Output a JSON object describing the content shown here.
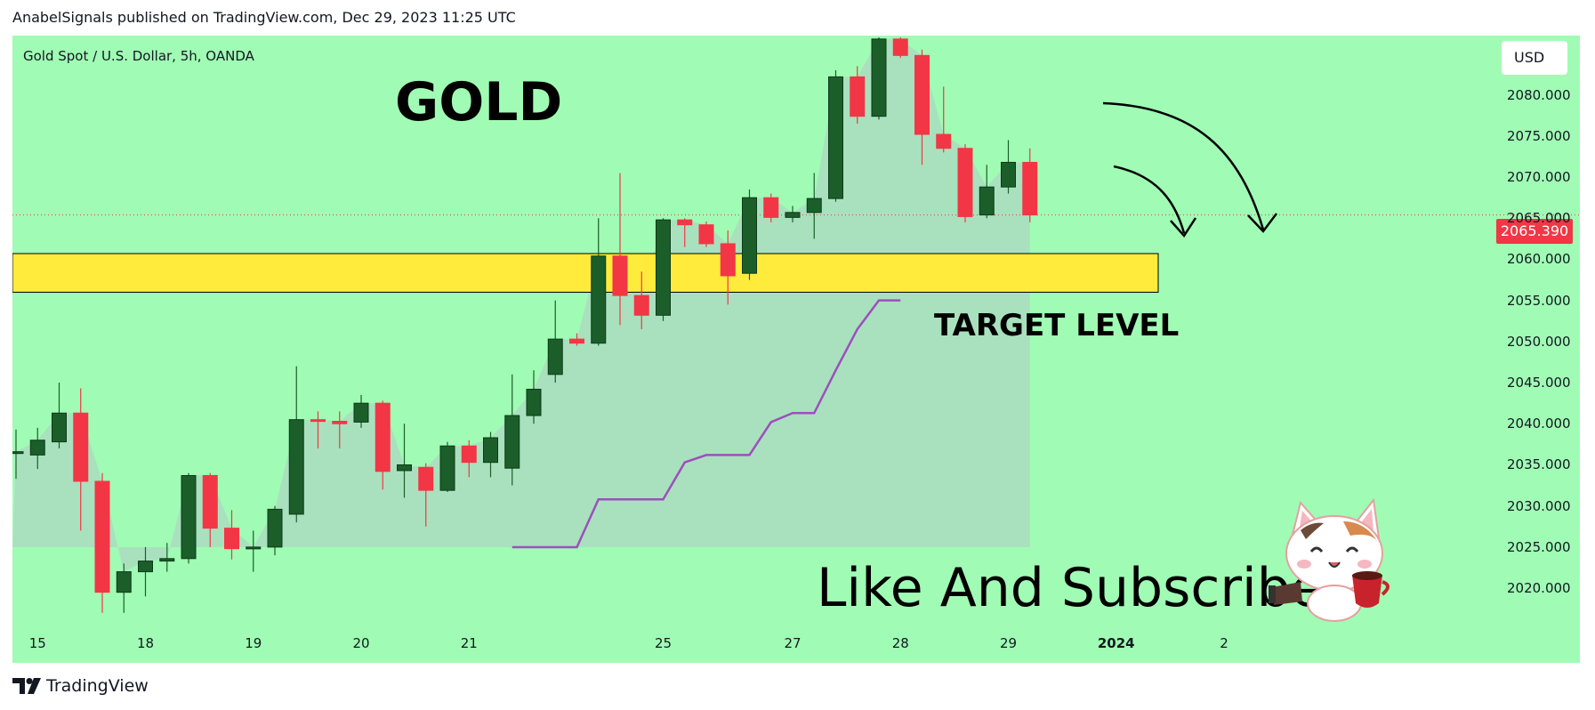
{
  "caption": "AnabelSignals published on TradingView.com, Dec 29, 2023 11:25 UTC",
  "symbol_title": "Gold Spot / U.S. Dollar, 5h, OANDA",
  "currency": "USD",
  "last_price": "2065.390",
  "annotations": {
    "gold": "GOLD",
    "target": "TARGET LEVEL",
    "subscribe": "Like And Subscribe"
  },
  "footer_logo": "TradingView",
  "colors": {
    "background": "#a0fcb4",
    "bull": "#1b5e2a",
    "bear": "#f23645",
    "zone": "#ffeb3b",
    "trail": "#9c4fbd",
    "area": "#aadcc0"
  },
  "chart_data": {
    "type": "candlestick",
    "ylim": [
      2016,
      2087
    ],
    "yticks": [
      "2080.000",
      "2075.000",
      "2070.000",
      "2065.000",
      "2060.000",
      "2055.000",
      "2050.000",
      "2045.000",
      "2040.000",
      "2035.000",
      "2030.000",
      "2025.000",
      "2020.000"
    ],
    "xticks": [
      {
        "label": "15",
        "index": 1
      },
      {
        "label": "18",
        "index": 6
      },
      {
        "label": "19",
        "index": 11
      },
      {
        "label": "20",
        "index": 16
      },
      {
        "label": "21",
        "index": 21
      },
      {
        "label": "25",
        "index": 30
      },
      {
        "label": "27",
        "index": 36
      },
      {
        "label": "28",
        "index": 41
      },
      {
        "label": "29",
        "index": 46
      },
      {
        "label": "2024",
        "index": 51,
        "bold": true
      },
      {
        "label": "2",
        "index": 56
      }
    ],
    "target_zone": {
      "low": 2056,
      "high": 2060.7
    },
    "candles": [
      {
        "o": 2036.5,
        "h": 2039.3,
        "l": 2033.3,
        "c": 2036.6
      },
      {
        "o": 2036.2,
        "h": 2039.5,
        "l": 2034.5,
        "c": 2038.0
      },
      {
        "o": 2037.8,
        "h": 2045.0,
        "l": 2037.0,
        "c": 2041.3
      },
      {
        "o": 2041.3,
        "h": 2044.3,
        "l": 2027.0,
        "c": 2033.0
      },
      {
        "o": 2033.0,
        "h": 2034.0,
        "l": 2017.0,
        "c": 2019.5
      },
      {
        "o": 2019.5,
        "h": 2023.0,
        "l": 2017.0,
        "c": 2022.0
      },
      {
        "o": 2022.0,
        "h": 2025.0,
        "l": 2019.0,
        "c": 2023.3
      },
      {
        "o": 2023.3,
        "h": 2025.5,
        "l": 2022.0,
        "c": 2023.6
      },
      {
        "o": 2023.6,
        "h": 2034.0,
        "l": 2023.0,
        "c": 2033.7
      },
      {
        "o": 2033.7,
        "h": 2034.0,
        "l": 2025.0,
        "c": 2027.3
      },
      {
        "o": 2027.3,
        "h": 2029.5,
        "l": 2023.5,
        "c": 2024.8
      },
      {
        "o": 2024.8,
        "h": 2027.0,
        "l": 2022.0,
        "c": 2025.0
      },
      {
        "o": 2025.0,
        "h": 2030.0,
        "l": 2024.0,
        "c": 2029.6
      },
      {
        "o": 2029.0,
        "h": 2047.0,
        "l": 2028.0,
        "c": 2040.5
      },
      {
        "o": 2040.5,
        "h": 2041.5,
        "l": 2037.0,
        "c": 2040.3
      },
      {
        "o": 2040.3,
        "h": 2041.5,
        "l": 2037.0,
        "c": 2040.0
      },
      {
        "o": 2040.2,
        "h": 2043.5,
        "l": 2039.5,
        "c": 2042.5
      },
      {
        "o": 2042.5,
        "h": 2042.8,
        "l": 2032.0,
        "c": 2034.2
      },
      {
        "o": 2034.3,
        "h": 2040.0,
        "l": 2031.0,
        "c": 2035.0
      },
      {
        "o": 2034.7,
        "h": 2035.2,
        "l": 2027.5,
        "c": 2031.9
      },
      {
        "o": 2031.9,
        "h": 2037.8,
        "l": 2031.7,
        "c": 2037.3
      },
      {
        "o": 2037.3,
        "h": 2038.0,
        "l": 2033.5,
        "c": 2035.3
      },
      {
        "o": 2035.3,
        "h": 2039.0,
        "l": 2033.5,
        "c": 2038.3
      },
      {
        "o": 2034.6,
        "h": 2046.0,
        "l": 2032.5,
        "c": 2041.0
      },
      {
        "o": 2041.0,
        "h": 2046.5,
        "l": 2040.0,
        "c": 2044.2
      },
      {
        "o": 2046.0,
        "h": 2055.0,
        "l": 2045.0,
        "c": 2050.3
      },
      {
        "o": 2050.3,
        "h": 2051.0,
        "l": 2049.5,
        "c": 2049.8
      },
      {
        "o": 2049.8,
        "h": 2065.0,
        "l": 2049.5,
        "c": 2060.4
      },
      {
        "o": 2060.4,
        "h": 2070.5,
        "l": 2052.0,
        "c": 2055.6
      },
      {
        "o": 2055.6,
        "h": 2058.5,
        "l": 2051.5,
        "c": 2053.2
      },
      {
        "o": 2053.2,
        "h": 2065.0,
        "l": 2052.5,
        "c": 2064.8
      },
      {
        "o": 2064.8,
        "h": 2065.0,
        "l": 2061.5,
        "c": 2064.2
      },
      {
        "o": 2064.2,
        "h": 2064.6,
        "l": 2061.5,
        "c": 2061.9
      },
      {
        "o": 2061.9,
        "h": 2063.5,
        "l": 2054.5,
        "c": 2058.0
      },
      {
        "o": 2058.3,
        "h": 2068.5,
        "l": 2057.5,
        "c": 2067.5
      },
      {
        "o": 2067.5,
        "h": 2068.0,
        "l": 2064.5,
        "c": 2065.1
      },
      {
        "o": 2065.1,
        "h": 2066.5,
        "l": 2064.5,
        "c": 2065.7
      },
      {
        "o": 2065.7,
        "h": 2070.5,
        "l": 2062.5,
        "c": 2067.4
      },
      {
        "o": 2067.4,
        "h": 2083.0,
        "l": 2067.0,
        "c": 2082.2
      },
      {
        "o": 2082.2,
        "h": 2083.5,
        "l": 2076.5,
        "c": 2077.4
      },
      {
        "o": 2077.4,
        "h": 2087.0,
        "l": 2077.0,
        "c": 2086.8
      },
      {
        "o": 2086.8,
        "h": 2087.0,
        "l": 2084.5,
        "c": 2084.8
      },
      {
        "o": 2084.8,
        "h": 2085.5,
        "l": 2071.5,
        "c": 2075.2
      },
      {
        "o": 2075.2,
        "h": 2081.0,
        "l": 2073.0,
        "c": 2073.5
      },
      {
        "o": 2073.5,
        "h": 2074.0,
        "l": 2064.5,
        "c": 2065.2
      },
      {
        "o": 2065.4,
        "h": 2071.5,
        "l": 2065.0,
        "c": 2068.8
      },
      {
        "o": 2068.8,
        "h": 2074.5,
        "l": 2068.0,
        "c": 2071.8
      },
      {
        "o": 2071.8,
        "h": 2073.5,
        "l": 2064.5,
        "c": 2065.4
      }
    ],
    "trail": [
      2005,
      2005,
      2005,
      2005,
      2005,
      2005,
      2005,
      2005,
      2005,
      2005,
      2005,
      2005,
      2005,
      2005,
      2005,
      2005,
      2005,
      2005,
      2005,
      2005,
      2005,
      2005,
      2005,
      2005,
      2020,
      2024.5,
      2024.5,
      2030.8,
      2030.8,
      2030.8,
      2030.8,
      2035.3,
      2036.2,
      2036.2,
      2036.2,
      2040.2,
      2041.3,
      2041.3,
      2046.5,
      2051.5,
      2055.0,
      2055.0
    ]
  }
}
